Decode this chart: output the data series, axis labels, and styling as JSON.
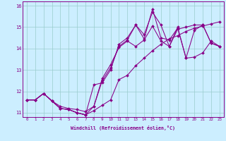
{
  "xlabel": "Windchill (Refroidissement éolien,°C)",
  "xlim": [
    -0.5,
    23.5
  ],
  "ylim": [
    10.8,
    16.2
  ],
  "xticks": [
    0,
    1,
    2,
    3,
    4,
    5,
    6,
    7,
    8,
    9,
    10,
    11,
    12,
    13,
    14,
    15,
    16,
    17,
    18,
    19,
    20,
    21,
    22,
    23
  ],
  "yticks": [
    11,
    12,
    13,
    14,
    15,
    16
  ],
  "bg_color": "#cceeff",
  "line_color": "#880088",
  "grid_color": "#99cccc",
  "series": [
    [
      11.6,
      11.6,
      11.9,
      11.55,
      11.2,
      11.15,
      11.0,
      10.9,
      11.1,
      11.35,
      11.6,
      12.55,
      12.75,
      13.2,
      13.55,
      13.9,
      14.2,
      14.45,
      14.6,
      14.8,
      14.95,
      15.05,
      15.15,
      15.25
    ],
    [
      11.6,
      11.6,
      11.9,
      11.55,
      11.3,
      11.2,
      11.15,
      11.05,
      11.3,
      12.6,
      13.25,
      14.05,
      14.35,
      14.1,
      14.4,
      15.05,
      14.35,
      14.1,
      14.9,
      15.0,
      15.1,
      15.1,
      14.25,
      14.1
    ],
    [
      11.6,
      11.6,
      11.9,
      11.55,
      11.2,
      11.15,
      11.0,
      10.9,
      11.3,
      12.5,
      13.1,
      14.1,
      14.4,
      15.1,
      14.45,
      15.85,
      14.5,
      14.4,
      14.95,
      13.55,
      13.6,
      13.8,
      14.35,
      14.1
    ],
    [
      11.6,
      11.6,
      11.9,
      11.55,
      11.2,
      11.15,
      11.0,
      10.9,
      12.3,
      12.4,
      13.0,
      14.2,
      14.5,
      15.1,
      14.65,
      15.7,
      15.1,
      14.1,
      15.0,
      13.55,
      14.85,
      15.1,
      14.25,
      14.1
    ]
  ]
}
